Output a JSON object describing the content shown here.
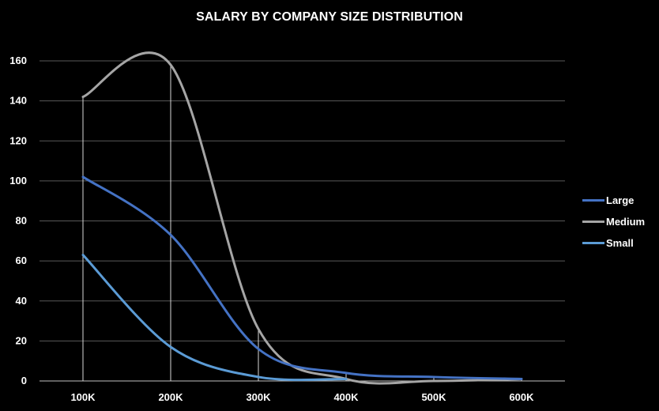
{
  "chart_data": {
    "type": "line",
    "title": "SALARY BY COMPANY SIZE DISTRIBUTION",
    "xlabel": "",
    "ylabel": "",
    "categories": [
      "100K",
      "200K",
      "300K",
      "400K",
      "500K",
      "600K"
    ],
    "ylim": [
      0,
      160
    ],
    "yticks": [
      0,
      20,
      40,
      60,
      80,
      100,
      120,
      140,
      160
    ],
    "grid": true,
    "legend_position": "right",
    "series": [
      {
        "name": "Large",
        "color": "#4472c4",
        "values": [
          102,
          73,
          16,
          4,
          2,
          1
        ]
      },
      {
        "name": "Medium",
        "color": "#a5a5a5",
        "values": [
          142,
          158,
          26,
          1,
          0,
          1
        ]
      },
      {
        "name": "Small",
        "color": "#5b9bd5",
        "values": [
          63,
          17,
          2,
          1,
          null,
          null
        ]
      }
    ]
  }
}
